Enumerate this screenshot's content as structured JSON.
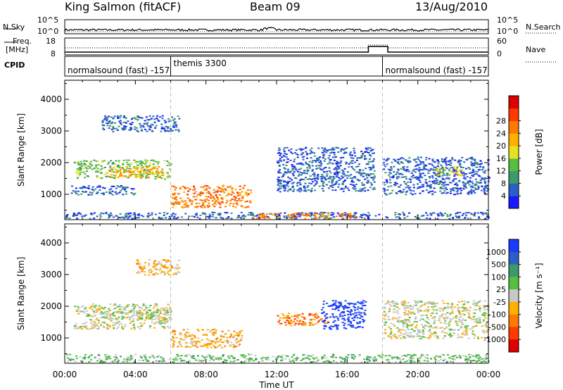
{
  "header": {
    "station": "King Salmon (fitACF)",
    "beam": "Beam 09",
    "date": "13/Aug/2010"
  },
  "noise_panel": {
    "left_label": "N.Sky",
    "right_label": "N.Search",
    "left_ticks": [
      "10^5",
      "10^0"
    ],
    "right_ticks": [
      "10^5",
      "10^0"
    ]
  },
  "freq_panel": {
    "left_label_1": "Freq.",
    "left_label_2": "[MHz]",
    "right_label": "Nave",
    "left_ticks": [
      "18",
      "8"
    ],
    "right_ticks": [
      "60",
      "0"
    ]
  },
  "cpid_panel": {
    "label": "CPID",
    "segments": [
      {
        "text": "normalsound (fast) -157",
        "start_hour": 0
      },
      {
        "text": "themis 3300",
        "start_hour": 6
      },
      {
        "text": "normalsound (fast) -157",
        "start_hour": 18
      }
    ]
  },
  "chart_data": [
    {
      "type": "heatmap",
      "name": "power",
      "ylabel": "Slant Range [km]",
      "yticks": [
        "1000",
        "2000",
        "3000",
        "4000"
      ],
      "ylim": [
        200,
        4600
      ],
      "xlim_hours": [
        0,
        24
      ],
      "colorbar": {
        "label": "Power [dB]",
        "ticks": [
          "4",
          "8",
          "12",
          "16",
          "20",
          "24",
          "28"
        ],
        "colors": [
          "#1a1aff",
          "#2a5fc8",
          "#3d9a6a",
          "#55c040",
          "#e8e020",
          "#ffb000",
          "#ff7a00",
          "#ff3a00",
          "#e00000"
        ]
      },
      "regions": [
        {
          "t": [
            0.5,
            6.0
          ],
          "r": [
            1500,
            2100
          ],
          "level": 3
        },
        {
          "t": [
            2.5,
            5.5
          ],
          "r": [
            1550,
            1900
          ],
          "level": 5
        },
        {
          "t": [
            0.3,
            4.0
          ],
          "r": [
            1000,
            1300
          ],
          "level": 1
        },
        {
          "t": [
            2.0,
            6.5
          ],
          "r": [
            3000,
            3500
          ],
          "level": 1
        },
        {
          "t": [
            6.0,
            10.5
          ],
          "r": [
            600,
            1300
          ],
          "level": 6
        },
        {
          "t": [
            12.0,
            17.5
          ],
          "r": [
            1100,
            2500
          ],
          "level": 1
        },
        {
          "t": [
            18.0,
            24.0
          ],
          "r": [
            1000,
            2200
          ],
          "level": 1
        },
        {
          "t": [
            21.0,
            22.5
          ],
          "r": [
            1600,
            1900
          ],
          "level": 4
        },
        {
          "t": [
            0.0,
            24.0
          ],
          "r": [
            250,
            450
          ],
          "level": 1
        },
        {
          "t": [
            10.5,
            16.5
          ],
          "r": [
            250,
            420
          ],
          "level": 6
        }
      ]
    },
    {
      "type": "heatmap",
      "name": "velocity",
      "ylabel": "Slant Range [km]",
      "yticks": [
        "1000",
        "2000",
        "3000",
        "4000"
      ],
      "ylim": [
        200,
        4600
      ],
      "xlim_hours": [
        0,
        24
      ],
      "xticks": [
        "00:00",
        "04:00",
        "08:00",
        "12:00",
        "16:00",
        "20:00",
        "00:00"
      ],
      "xlabel": "Time UT",
      "colorbar": {
        "label": "Velocity [m s⁻¹]",
        "ticks": [
          "1000",
          "500",
          "100",
          "25",
          "-25",
          "-100",
          "-500",
          "-1000"
        ],
        "colors": [
          "#1a3aff",
          "#2a5fc8",
          "#3d9a6a",
          "#55c040",
          "#c8c8c8",
          "#ffb000",
          "#ff7a00",
          "#ff3a00",
          "#e00000"
        ]
      },
      "regions": [
        {
          "t": [
            0.5,
            6.0
          ],
          "r": [
            1300,
            2100
          ],
          "level": 4
        },
        {
          "t": [
            2.0,
            6.0
          ],
          "r": [
            1600,
            1900
          ],
          "level": 4
        },
        {
          "t": [
            6.0,
            10.0
          ],
          "r": [
            700,
            1300
          ],
          "level": 5
        },
        {
          "t": [
            4.0,
            6.5
          ],
          "r": [
            3000,
            3500
          ],
          "level": 5
        },
        {
          "t": [
            12.0,
            15.0
          ],
          "r": [
            1400,
            1800
          ],
          "level": 6
        },
        {
          "t": [
            14.5,
            17.0
          ],
          "r": [
            1300,
            2200
          ],
          "level": 0
        },
        {
          "t": [
            18.0,
            24.0
          ],
          "r": [
            1000,
            2200
          ],
          "level": 4
        },
        {
          "t": [
            0.0,
            24.0
          ],
          "r": [
            250,
            500
          ],
          "level": 3
        }
      ]
    }
  ]
}
